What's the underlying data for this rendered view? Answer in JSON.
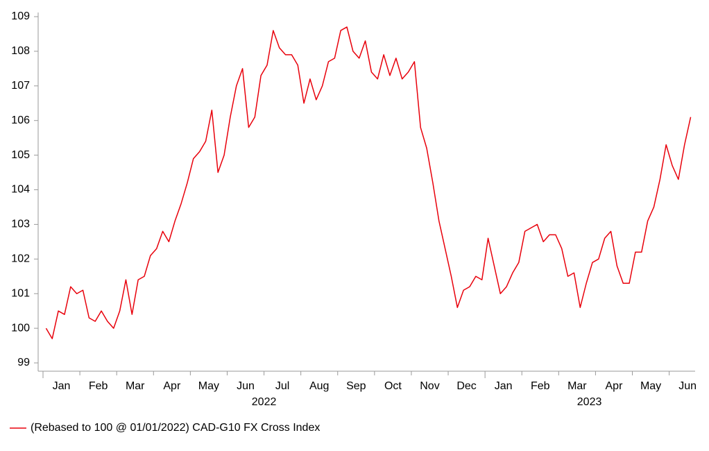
{
  "chart_data": {
    "type": "line",
    "categories": [
      null,
      null,
      null,
      "Jan",
      null,
      null,
      null,
      null,
      null,
      "Feb",
      null,
      null,
      null,
      null,
      null,
      "Mar",
      null,
      null,
      null,
      null,
      null,
      "Apr",
      null,
      null,
      null,
      null,
      null,
      "May",
      null,
      null,
      null,
      null,
      null,
      "Jun",
      null,
      null,
      null,
      null,
      null,
      "Jul",
      null,
      null,
      null,
      null,
      null,
      "Aug",
      null,
      null,
      null,
      null,
      null,
      "Sep",
      null,
      null,
      null,
      null,
      null,
      "Oct",
      null,
      null,
      null,
      null,
      null,
      "Nov",
      null,
      null,
      null,
      null,
      null,
      "Dec",
      null,
      null,
      null,
      null,
      null,
      "Jan",
      null,
      null,
      null,
      null,
      null,
      "Feb",
      null,
      null,
      null,
      null,
      null,
      "Mar",
      null,
      null,
      null,
      null,
      null,
      "Apr",
      null,
      null,
      null,
      null,
      null,
      "May",
      null,
      null,
      null,
      null,
      null,
      "Jun"
    ],
    "x_groups": [
      {
        "label": "2022"
      },
      {
        "label": "2023"
      }
    ],
    "series": [
      {
        "name": "(Rebased to 100 @ 01/01/2022) CAD-G10 FX Cross Index",
        "color": "#e8000b",
        "values": [
          100.0,
          99.7,
          100.5,
          100.4,
          101.2,
          101.0,
          101.1,
          100.3,
          100.2,
          100.5,
          100.2,
          100.0,
          100.5,
          101.4,
          100.4,
          101.4,
          101.5,
          102.1,
          102.3,
          102.8,
          102.5,
          103.1,
          103.6,
          104.2,
          104.9,
          105.1,
          105.4,
          106.3,
          104.5,
          105.0,
          106.1,
          107.0,
          107.5,
          105.8,
          106.1,
          107.3,
          107.6,
          108.6,
          108.1,
          107.9,
          107.9,
          107.6,
          106.5,
          107.2,
          106.6,
          107.0,
          107.7,
          107.8,
          108.6,
          108.7,
          108.0,
          107.8,
          108.3,
          107.4,
          107.2,
          107.9,
          107.3,
          107.8,
          107.2,
          107.4,
          107.7,
          105.8,
          105.2,
          104.2,
          103.1,
          102.3,
          101.5,
          100.6,
          101.1,
          101.2,
          101.5,
          101.4,
          102.6,
          101.8,
          101.0,
          101.2,
          101.6,
          101.9,
          102.8,
          102.9,
          103.0,
          102.5,
          102.7,
          102.7,
          102.3,
          101.5,
          101.6,
          100.6,
          101.3,
          101.9,
          102.0,
          102.6,
          102.8,
          101.8,
          101.3,
          101.3,
          102.2,
          102.2,
          103.1,
          103.5,
          104.3,
          105.3,
          104.7,
          104.3,
          105.3,
          106.1
        ]
      }
    ],
    "ylim": [
      98.76,
      109.12
    ],
    "yticks": [
      99,
      100,
      101,
      102,
      103,
      104,
      105,
      106,
      107,
      108,
      109
    ],
    "legend": "bottom-left"
  }
}
